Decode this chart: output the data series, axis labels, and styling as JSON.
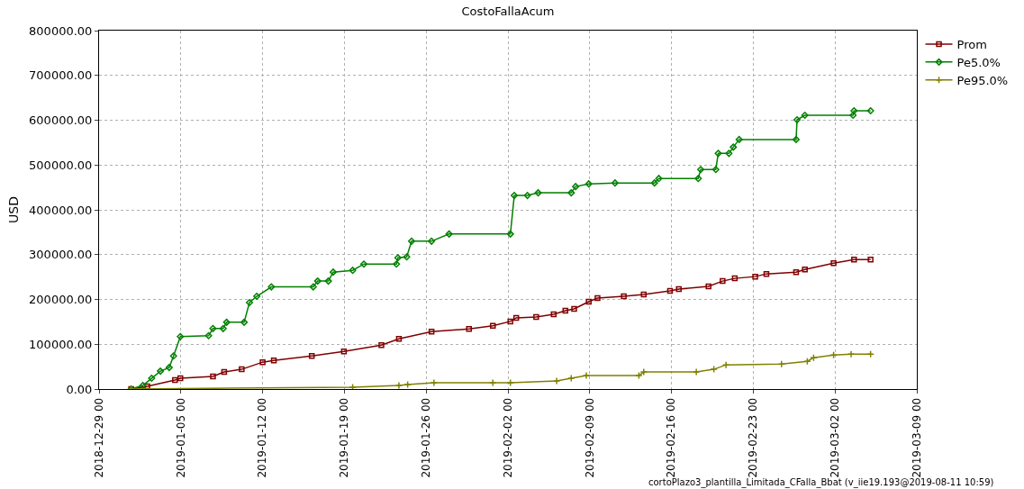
{
  "chart_data": {
    "type": "line",
    "title": "CostoFallaAcum",
    "ylabel": "USD",
    "xlim": [
      "2018-12-29",
      "2019-03-09"
    ],
    "xticks": [
      {
        "value": "2018-12-29",
        "label": "2018-12-29 00"
      },
      {
        "value": "2019-01-05",
        "label": "2019-01-05 00"
      },
      {
        "value": "2019-01-12",
        "label": "2019-01-12 00"
      },
      {
        "value": "2019-01-19",
        "label": "2019-01-19 00"
      },
      {
        "value": "2019-01-26",
        "label": "2019-01-26 00"
      },
      {
        "value": "2019-02-02",
        "label": "2019-02-02 00"
      },
      {
        "value": "2019-02-09",
        "label": "2019-02-09 00"
      },
      {
        "value": "2019-02-16",
        "label": "2019-02-16 00"
      },
      {
        "value": "2019-02-23",
        "label": "2019-02-23 00"
      },
      {
        "value": "2019-03-02",
        "label": "2019-03-02 00"
      },
      {
        "value": "2019-03-09",
        "label": "2019-03-09 00"
      }
    ],
    "ylim": [
      0,
      800000
    ],
    "yticks": [
      {
        "value": 0,
        "label": "0.00"
      },
      {
        "value": 100000,
        "label": "100000.00"
      },
      {
        "value": 200000,
        "label": "200000.00"
      },
      {
        "value": 300000,
        "label": "300000.00"
      },
      {
        "value": 400000,
        "label": "400000.00"
      },
      {
        "value": 500000,
        "label": "500000.00"
      },
      {
        "value": 600000,
        "label": "600000.00"
      },
      {
        "value": 700000,
        "label": "700000.00"
      },
      {
        "value": 800000,
        "label": "800000.00"
      }
    ],
    "grid": true,
    "legend": "top right",
    "annotations": [
      "cortoPlazo3_plantilla_Limitada_CFalla_Bbat (v_iie19.193@2019-08-11 10:59)"
    ],
    "series": [
      {
        "name": "Prom",
        "color": "#800000",
        "marker": "square",
        "x": [
          "2018-12-31T18:00",
          "2019-01-02T03:00",
          "2019-01-04T12:00",
          "2019-01-04T23:00",
          "2019-01-07T18:00",
          "2019-01-08T17:00",
          "2019-01-10T05:00",
          "2019-01-12T00:00",
          "2019-01-12T23:00",
          "2019-01-16T05:00",
          "2019-01-18T23:00",
          "2019-01-22T04:00",
          "2019-01-23T16:00",
          "2019-01-26T11:00",
          "2019-01-29T16:00",
          "2019-01-31T17:00",
          "2019-02-02T05:00",
          "2019-02-02T17:00",
          "2019-02-04T10:00",
          "2019-02-05T22:00",
          "2019-02-06T22:00",
          "2019-02-07T16:00",
          "2019-02-08T22:00",
          "2019-02-09T16:00",
          "2019-02-11T22:00",
          "2019-02-13T15:00",
          "2019-02-15T21:00",
          "2019-02-16T15:00",
          "2019-02-19T04:00",
          "2019-02-20T09:00",
          "2019-02-21T10:00",
          "2019-02-23T04:00",
          "2019-02-24T03:00",
          "2019-02-26T16:00",
          "2019-02-27T10:00",
          "2019-03-01T21:00",
          "2019-03-03T15:00",
          "2019-03-05T01:00"
        ],
        "values": [
          0,
          6000,
          20000,
          24000,
          28000,
          38000,
          44000,
          60000,
          64000,
          74000,
          84000,
          98000,
          112000,
          128000,
          134000,
          141000,
          151000,
          159000,
          161000,
          167000,
          175000,
          179000,
          195000,
          203000,
          207000,
          211000,
          219000,
          223000,
          229000,
          241000,
          247000,
          251000,
          257000,
          261000,
          267000,
          281000,
          289000,
          289000
        ]
      },
      {
        "name": "Pe5.0%",
        "color": "#008000",
        "marker": "diamond",
        "x": [
          "2018-12-31T18:00",
          "2019-01-01T18:00",
          "2019-01-02T12:00",
          "2019-01-03T06:00",
          "2019-01-04T00:00",
          "2019-01-04T09:00",
          "2019-01-04T23:00",
          "2019-01-07T09:00",
          "2019-01-07T18:00",
          "2019-01-08T15:00",
          "2019-01-08T22:00",
          "2019-01-10T10:00",
          "2019-01-10T21:00",
          "2019-01-11T12:00",
          "2019-01-12T18:00",
          "2019-01-16T08:00",
          "2019-01-16T17:00",
          "2019-01-17T15:00",
          "2019-01-18T01:00",
          "2019-01-19T17:00",
          "2019-01-20T16:00",
          "2019-01-23T11:00",
          "2019-01-23T14:00",
          "2019-01-24T08:00",
          "2019-01-24T18:00",
          "2019-01-26T11:00",
          "2019-01-27T23:00",
          "2019-02-02T05:00",
          "2019-02-02T13:00",
          "2019-02-03T16:00",
          "2019-02-04T14:00",
          "2019-02-07T10:00",
          "2019-02-07T19:00",
          "2019-02-08T22:00",
          "2019-02-11T04:00",
          "2019-02-14T13:00",
          "2019-02-14T22:00",
          "2019-02-18T07:00",
          "2019-02-18T12:00",
          "2019-02-19T19:00",
          "2019-02-20T00:00",
          "2019-02-20T22:00",
          "2019-02-21T07:00",
          "2019-02-21T19:00",
          "2019-02-26T16:00",
          "2019-02-26T18:00",
          "2019-02-27T10:00",
          "2019-03-03T13:00",
          "2019-03-03T15:00",
          "2019-03-05T01:00"
        ],
        "values": [
          0,
          8000,
          24000,
          40000,
          48000,
          74000,
          117000,
          119000,
          135000,
          135000,
          149000,
          149000,
          193000,
          207000,
          228000,
          228000,
          241000,
          241000,
          261000,
          265000,
          279000,
          279000,
          293000,
          295000,
          330000,
          330000,
          346000,
          346000,
          432000,
          432000,
          438000,
          438000,
          452000,
          458000,
          460000,
          460000,
          470000,
          470000,
          490000,
          490000,
          526000,
          526000,
          540000,
          557000,
          557000,
          601000,
          611000,
          611000,
          621000,
          621000
        ]
      },
      {
        "name": "Pe95.0%",
        "color": "#808000",
        "marker": "cross",
        "x": [
          "2018-12-31T18:00",
          "2019-01-19T17:00",
          "2019-01-23T16:00",
          "2019-01-24T10:00",
          "2019-01-26T16:00",
          "2019-01-31T17:00",
          "2019-02-02T05:00",
          "2019-02-06T04:00",
          "2019-02-07T10:00",
          "2019-02-08T17:00",
          "2019-02-13T05:00",
          "2019-02-13T15:00",
          "2019-02-18T03:00",
          "2019-02-19T15:00",
          "2019-02-20T16:00",
          "2019-02-25T10:00",
          "2019-02-27T15:00",
          "2019-02-28T04:00",
          "2019-03-01T21:00",
          "2019-03-03T09:00",
          "2019-03-05T01:00"
        ],
        "values": [
          0,
          4000,
          8000,
          10000,
          14000,
          14000,
          14000,
          18000,
          24000,
          30000,
          30000,
          38000,
          38000,
          44000,
          54000,
          56000,
          62000,
          70000,
          76000,
          78000,
          78000
        ]
      }
    ]
  }
}
